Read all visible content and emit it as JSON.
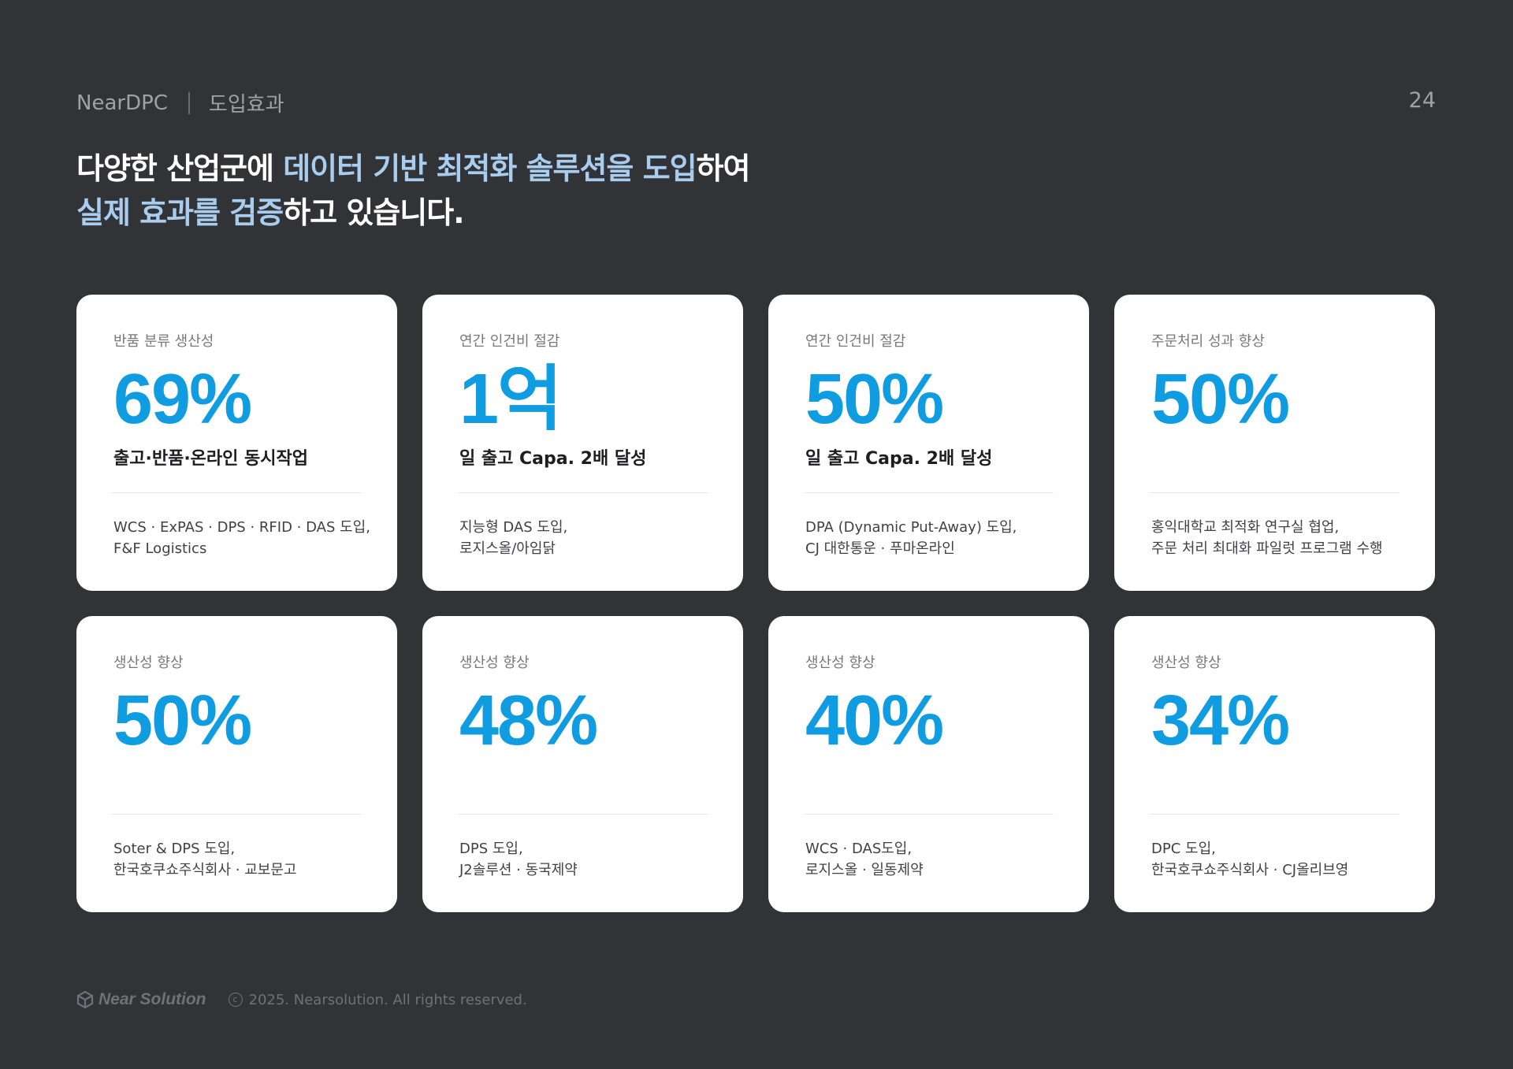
{
  "header": {
    "brand": "NearDPC",
    "section": "도입효과",
    "page_number": "24"
  },
  "headline": {
    "line1_plain_start": "다양한 산업군에 ",
    "line1_highlight": "데이터 기반 최적화 솔루션을 도입",
    "line1_plain_end": "하여",
    "line2_highlight": "실제 효과를 검증",
    "line2_plain_end": "하고 있습니다."
  },
  "cards": [
    {
      "label": "반품 분류 생산성",
      "metric": "69%",
      "achievement": "출고·반품·온라인 동시작업",
      "desc_line1": "WCS · ExPAS · DPS · RFID · DAS 도입,",
      "desc_line2": "F&F Logistics"
    },
    {
      "label": "연간 인건비 절감",
      "metric": "1억",
      "achievement": "일 출고 Capa. 2배 달성",
      "desc_line1": "지능형 DAS 도입,",
      "desc_line2": "로지스올/아임닭"
    },
    {
      "label": "연간 인건비 절감",
      "metric": "50%",
      "achievement": "일 출고 Capa. 2배 달성",
      "desc_line1": "DPA (Dynamic Put-Away) 도입,",
      "desc_line2": "CJ 대한통운 · 푸마온라인"
    },
    {
      "label": "주문처리 성과 향상",
      "metric": "50%",
      "achievement": "",
      "desc_line1": "홍익대학교 최적화 연구실 협업,",
      "desc_line2": "주문 처리 최대화 파일럿 프로그램 수행"
    },
    {
      "label": "생산성 향상",
      "metric": "50%",
      "achievement": "",
      "desc_line1": "Soter & DPS 도입,",
      "desc_line2": "한국호쿠쇼주식회사 · 교보문고"
    },
    {
      "label": "생산성 향상",
      "metric": "48%",
      "achievement": "",
      "desc_line1": "DPS 도입,",
      "desc_line2": "J2솔루션 · 동국제약"
    },
    {
      "label": "생산성 향상",
      "metric": "40%",
      "achievement": "",
      "desc_line1": "WCS · DAS도입,",
      "desc_line2": "로지스올 · 일동제약"
    },
    {
      "label": "생산성 향상",
      "metric": "34%",
      "achievement": "",
      "desc_line1": "DPC 도입,",
      "desc_line2": "한국호쿠쇼주식회사 · CJ올리브영"
    }
  ],
  "footer": {
    "logo_text": "Near Solution",
    "copyright_symbol": "c",
    "copyright": "2025. Nearsolution. All rights reserved."
  },
  "colors": {
    "background": "#323337",
    "card": "#ffffff",
    "metric_blue": "#0f9ce0",
    "headline_highlight": "#a8cdee"
  },
  "icons": {
    "footer_logo": "near-solution-logo-icon",
    "copyright": "copyright-icon"
  }
}
